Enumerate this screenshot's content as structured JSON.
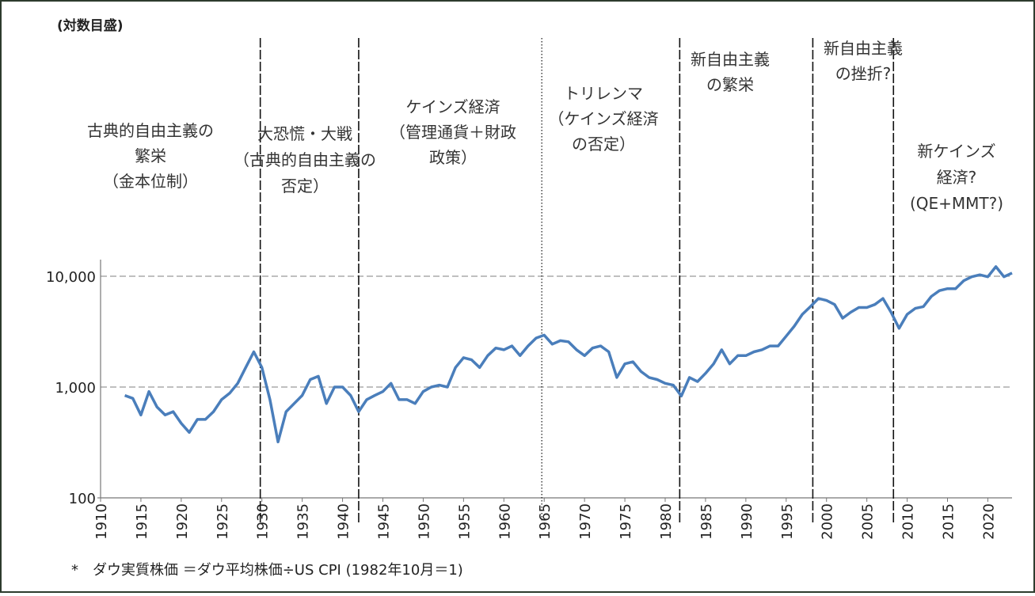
{
  "chart_data": {
    "type": "line",
    "y_label": "(対数目盛)",
    "footnote": "*　ダウ実質株価 ＝ダウ平均株価÷US CPI (1982年10月＝1)",
    "log_scale": true,
    "grid": true,
    "color": "#4a7ebb",
    "xlim": [
      1910,
      2023
    ],
    "ylim": [
      100,
      13000
    ],
    "xticks": [
      1910,
      1915,
      1920,
      1925,
      1930,
      1935,
      1940,
      1945,
      1950,
      1955,
      1960,
      1965,
      1970,
      1975,
      1980,
      1985,
      1990,
      1995,
      2000,
      2005,
      2010,
      2015,
      2020
    ],
    "yticks": [
      {
        "value": 100,
        "label": "100"
      },
      {
        "value": 1000,
        "label": "1,000"
      },
      {
        "value": 10000,
        "label": "10,000"
      }
    ],
    "x": [
      1913,
      1914,
      1915,
      1916,
      1917,
      1918,
      1919,
      1920,
      1921,
      1922,
      1923,
      1924,
      1925,
      1926,
      1927,
      1928,
      1929,
      1930,
      1931,
      1932,
      1933,
      1934,
      1935,
      1936,
      1937,
      1938,
      1939,
      1940,
      1941,
      1942,
      1943,
      1944,
      1945,
      1946,
      1947,
      1948,
      1949,
      1950,
      1951,
      1952,
      1953,
      1954,
      1955,
      1956,
      1957,
      1958,
      1959,
      1960,
      1961,
      1962,
      1963,
      1964,
      1965,
      1966,
      1967,
      1968,
      1969,
      1970,
      1971,
      1972,
      1973,
      1974,
      1975,
      1976,
      1977,
      1978,
      1979,
      1980,
      1981,
      1982,
      1983,
      1984,
      1985,
      1986,
      1987,
      1988,
      1989,
      1990,
      1991,
      1992,
      1993,
      1994,
      1995,
      1996,
      1997,
      1998,
      1999,
      2000,
      2001,
      2002,
      2003,
      2004,
      2005,
      2006,
      2007,
      2008,
      2009,
      2010,
      2011,
      2012,
      2013,
      2014,
      2015,
      2016,
      2017,
      2018,
      2019,
      2020,
      2021,
      2022,
      2023
    ],
    "series": [
      {
        "name": "ダウ実質株価",
        "color": "#4a7ebb",
        "values": [
          840,
          790,
          560,
          910,
          660,
          560,
          600,
          470,
          390,
          510,
          510,
          600,
          770,
          880,
          1080,
          1500,
          2080,
          1500,
          770,
          320,
          600,
          710,
          840,
          1170,
          1250,
          710,
          1000,
          1000,
          840,
          600,
          770,
          840,
          910,
          1080,
          770,
          770,
          710,
          910,
          1000,
          1040,
          1000,
          1500,
          1840,
          1760,
          1500,
          1920,
          2250,
          2170,
          2350,
          1920,
          2350,
          2770,
          2940,
          2440,
          2620,
          2560,
          2170,
          1920,
          2250,
          2350,
          2080,
          1220,
          1620,
          1690,
          1380,
          1220,
          1170,
          1080,
          1040,
          830,
          1220,
          1120,
          1330,
          1620,
          2170,
          1620,
          1920,
          1920,
          2080,
          2170,
          2350,
          2350,
          2880,
          3540,
          4530,
          5320,
          6300,
          6050,
          5560,
          4180,
          4730,
          5220,
          5220,
          5560,
          6300,
          4730,
          3390,
          4530,
          5130,
          5320,
          6570,
          7410,
          7720,
          7720,
          9100,
          9890,
          10300,
          9890,
          12200,
          9890,
          10700
        ]
      }
    ],
    "vlines": [
      {
        "x": 1929.8,
        "style": "dashed"
      },
      {
        "x": 1942,
        "style": "dashed"
      },
      {
        "x": 1964.7,
        "style": "dotted"
      },
      {
        "x": 1981.8,
        "style": "dashed"
      },
      {
        "x": 1998.3,
        "style": "dashed"
      },
      {
        "x": 2008.3,
        "style": "dashed"
      }
    ],
    "annotations": [
      {
        "lines": [
          "古典的自由主義の",
          "繁栄",
          "（金本位制）"
        ]
      },
      {
        "lines": [
          "大恐慌・大戦",
          "（古典的自由主義の",
          "否定）"
        ]
      },
      {
        "lines": [
          "ケインズ経済",
          "（管理通貨＋財政",
          "政策）"
        ]
      },
      {
        "lines": [
          "トリレンマ",
          "（ケインズ経済",
          "の否定）"
        ]
      },
      {
        "lines": [
          "新自由主義",
          "の繁栄"
        ]
      },
      {
        "lines": [
          "新自由主義",
          "の挫折?"
        ]
      },
      {
        "lines": [
          "新ケインズ",
          "経済?",
          "(QE+MMT?)"
        ]
      }
    ]
  }
}
